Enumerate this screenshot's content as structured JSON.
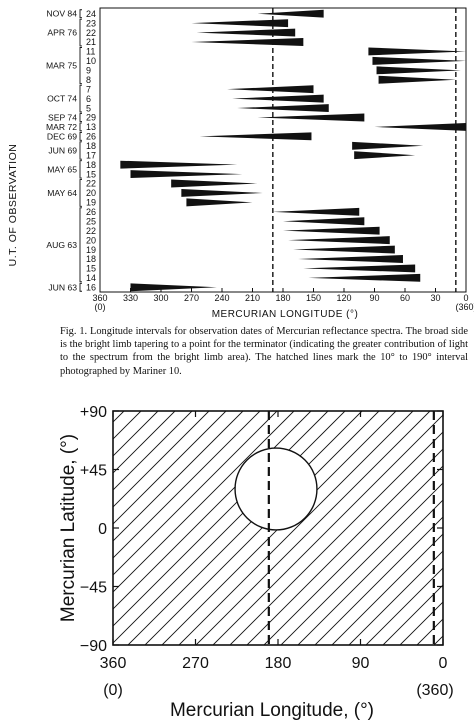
{
  "figure1": {
    "y_axis_label": "U.T. OF OBSERVATION",
    "x_axis_label": "MERCURIAN LONGITUDE (°)",
    "x_ticks": [
      "360",
      "330",
      "300",
      "270",
      "240",
      "210",
      "180",
      "150",
      "120",
      "90",
      "60",
      "30",
      "0"
    ],
    "x_ticks_alt": {
      "left": "(0)",
      "right": "(360)"
    },
    "date_groups": [
      {
        "label": "NOV 84",
        "days": [
          "24"
        ]
      },
      {
        "label": "APR 76",
        "days": [
          "23",
          "22",
          "21"
        ]
      },
      {
        "label": "MAR 75",
        "days": [
          "11",
          "10",
          "9",
          "8"
        ]
      },
      {
        "label": "OCT 74",
        "days": [
          "7",
          "6",
          "5"
        ]
      },
      {
        "label": "SEP 74",
        "days": [
          "29"
        ]
      },
      {
        "label": "MAR 72",
        "days": [
          "13"
        ]
      },
      {
        "label": "DEC 69",
        "days": [
          "26"
        ]
      },
      {
        "label": "JUN 69",
        "days": [
          "18",
          "17"
        ]
      },
      {
        "label": "MAY 65",
        "days": [
          "18",
          "15"
        ]
      },
      {
        "label": "MAY 64",
        "days": [
          "22",
          "20",
          "19"
        ]
      },
      {
        "label": "AUG 63",
        "days": [
          "26",
          "25",
          "22",
          "20",
          "19",
          "18",
          "15",
          "14"
        ]
      },
      {
        "label": "JUN 63",
        "days": [
          "16"
        ]
      }
    ],
    "caption": "Fig. 1. Longitude intervals for observation dates of Mercurian reflectance spectra. The broad side is the bright limb tapering to a point for the terminator (indicating the greater contribution of light to the spectrum from the bright limb area). The hatched lines mark the 10° to 190° interval photographed by Mariner 10."
  },
  "chart_data": [
    {
      "type": "bar",
      "xlabel": "MERCURIAN LONGITUDE (°)",
      "ylabel": "U.T. OF OBSERVATION",
      "xlim": [
        360,
        0
      ],
      "reference_lines": [
        190,
        10
      ],
      "rows": [
        {
          "date": "NOV 84 24",
          "bright_limb": 140,
          "terminator": 205
        },
        {
          "date": "APR 76 23",
          "bright_limb": 175,
          "terminator": 270
        },
        {
          "date": "APR 76 22",
          "bright_limb": 168,
          "terminator": 265
        },
        {
          "date": "APR 76 21",
          "bright_limb": 160,
          "terminator": 270
        },
        {
          "date": "MAR 75 11",
          "bright_limb": 96,
          "terminator": 0
        },
        {
          "date": "MAR 75 10",
          "bright_limb": 92,
          "terminator": 0
        },
        {
          "date": "MAR 75 9",
          "bright_limb": 88,
          "terminator": 5
        },
        {
          "date": "MAR 75 8",
          "bright_limb": 86,
          "terminator": 10
        },
        {
          "date": "OCT 74 7",
          "bright_limb": 150,
          "terminator": 235
        },
        {
          "date": "OCT 74 6",
          "bright_limb": 140,
          "terminator": 230
        },
        {
          "date": "OCT 74 5",
          "bright_limb": 135,
          "terminator": 225
        },
        {
          "date": "SEP 74 29",
          "bright_limb": 100,
          "terminator": 205
        },
        {
          "date": "MAR 72 13",
          "bright_limb": 0,
          "terminator": 90
        },
        {
          "date": "DEC 69 26",
          "bright_limb": 152,
          "terminator": 262
        },
        {
          "date": "JUN 69 18",
          "bright_limb": 112,
          "terminator": 42
        },
        {
          "date": "JUN 69 17",
          "bright_limb": 110,
          "terminator": 50
        },
        {
          "date": "MAY 65 18",
          "bright_limb": 340,
          "terminator": 225
        },
        {
          "date": "MAY 65 15",
          "bright_limb": 330,
          "terminator": 220
        },
        {
          "date": "MAY 64 22",
          "bright_limb": 290,
          "terminator": 205
        },
        {
          "date": "MAY 64 20",
          "bright_limb": 280,
          "terminator": 200
        },
        {
          "date": "MAY 64 19",
          "bright_limb": 275,
          "terminator": 210
        },
        {
          "date": "AUG 63 26",
          "bright_limb": 105,
          "terminator": 190
        },
        {
          "date": "AUG 63 25",
          "bright_limb": 100,
          "terminator": 180
        },
        {
          "date": "AUG 63 22",
          "bright_limb": 85,
          "terminator": 180
        },
        {
          "date": "AUG 63 20",
          "bright_limb": 75,
          "terminator": 175
        },
        {
          "date": "AUG 63 19",
          "bright_limb": 70,
          "terminator": 170
        },
        {
          "date": "AUG 63 18",
          "bright_limb": 62,
          "terminator": 165
        },
        {
          "date": "AUG 63 15",
          "bright_limb": 50,
          "terminator": 160
        },
        {
          "date": "AUG 63 14",
          "bright_limb": 45,
          "terminator": 155
        },
        {
          "date": "JUN 63 16",
          "bright_limb": 330,
          "terminator": 245
        }
      ]
    },
    {
      "type": "scatter",
      "xlabel": "Mercurian Longitude, (°)",
      "ylabel": "Mercurian Latitude, (°)",
      "xlim": [
        360,
        0
      ],
      "ylim": [
        -90,
        90
      ],
      "x_ticks": [
        "360",
        "270",
        "180",
        "90",
        "0"
      ],
      "x_ticks_alt": {
        "left": "(0)",
        "right": "(360)"
      },
      "y_ticks": [
        "+90",
        "+45",
        "0",
        "−45",
        "−90"
      ],
      "reference_lines": [
        190,
        10
      ],
      "hatched_region": {
        "x": [
          360,
          0
        ],
        "y": [
          -90,
          90
        ]
      },
      "unhatched_circle": {
        "center_longitude": 180,
        "center_latitude": 30,
        "radius_deg": 30
      }
    }
  ]
}
